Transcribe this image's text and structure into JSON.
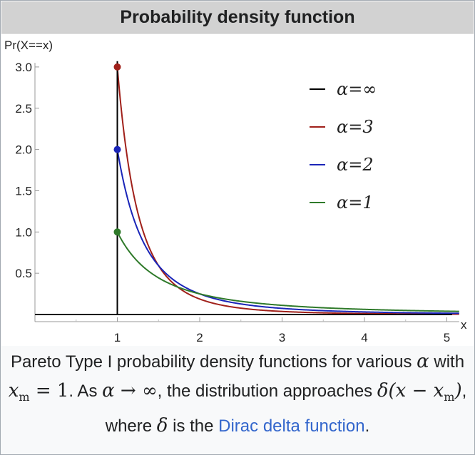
{
  "header": {
    "title": "Probability density function"
  },
  "chart_data": {
    "type": "line",
    "title": "Probability density function",
    "ylabel": "Pr(X==x)",
    "xlabel": "x",
    "xlim": [
      0,
      5.15
    ],
    "ylim": [
      0,
      3.05
    ],
    "x_ticks": [
      1,
      2,
      3,
      4,
      5
    ],
    "y_ticks": [
      0.5,
      1.0,
      1.5,
      2.0,
      2.5,
      3.0
    ],
    "x_tick_labels": [
      "1",
      "2",
      "3",
      "4",
      "5"
    ],
    "y_tick_labels": [
      "0.5",
      "1.0",
      "1.5",
      "2.0",
      "2.5",
      "3.0"
    ],
    "xm": 1,
    "legend_position": "top-right",
    "series": [
      {
        "name": "α=∞",
        "color": "#000000",
        "alpha": "infinity",
        "function": "delta(x - 1)"
      },
      {
        "name": "α=3",
        "color": "#a0201a",
        "alpha": 3,
        "function": "3 / x^4 for x >= 1",
        "start_point": [
          1,
          3
        ]
      },
      {
        "name": "α=2",
        "color": "#1a25b8",
        "alpha": 2,
        "function": "2 / x^3 for x >= 1",
        "start_point": [
          1,
          2
        ]
      },
      {
        "name": "α=1",
        "color": "#2f7a2a",
        "alpha": 1,
        "function": "1 / x^2 for x >= 1",
        "start_point": [
          1,
          1
        ]
      }
    ]
  },
  "caption": {
    "part1": "Pareto Type I probability density functions for various ",
    "alpha": "α",
    "part2": " with ",
    "xm_eq": "x",
    "xm_sub": "m",
    "xm_eq_rest": " = 1",
    "part3": ". As ",
    "limit": "α → ∞",
    "part4": ", the distribution approaches ",
    "delta_expr": "δ(x − x",
    "delta_sub": "m",
    "delta_close": ")",
    "part5": ", where ",
    "delta": "δ",
    "part6": " is the ",
    "link": "Dirac delta function",
    "part7": "."
  }
}
